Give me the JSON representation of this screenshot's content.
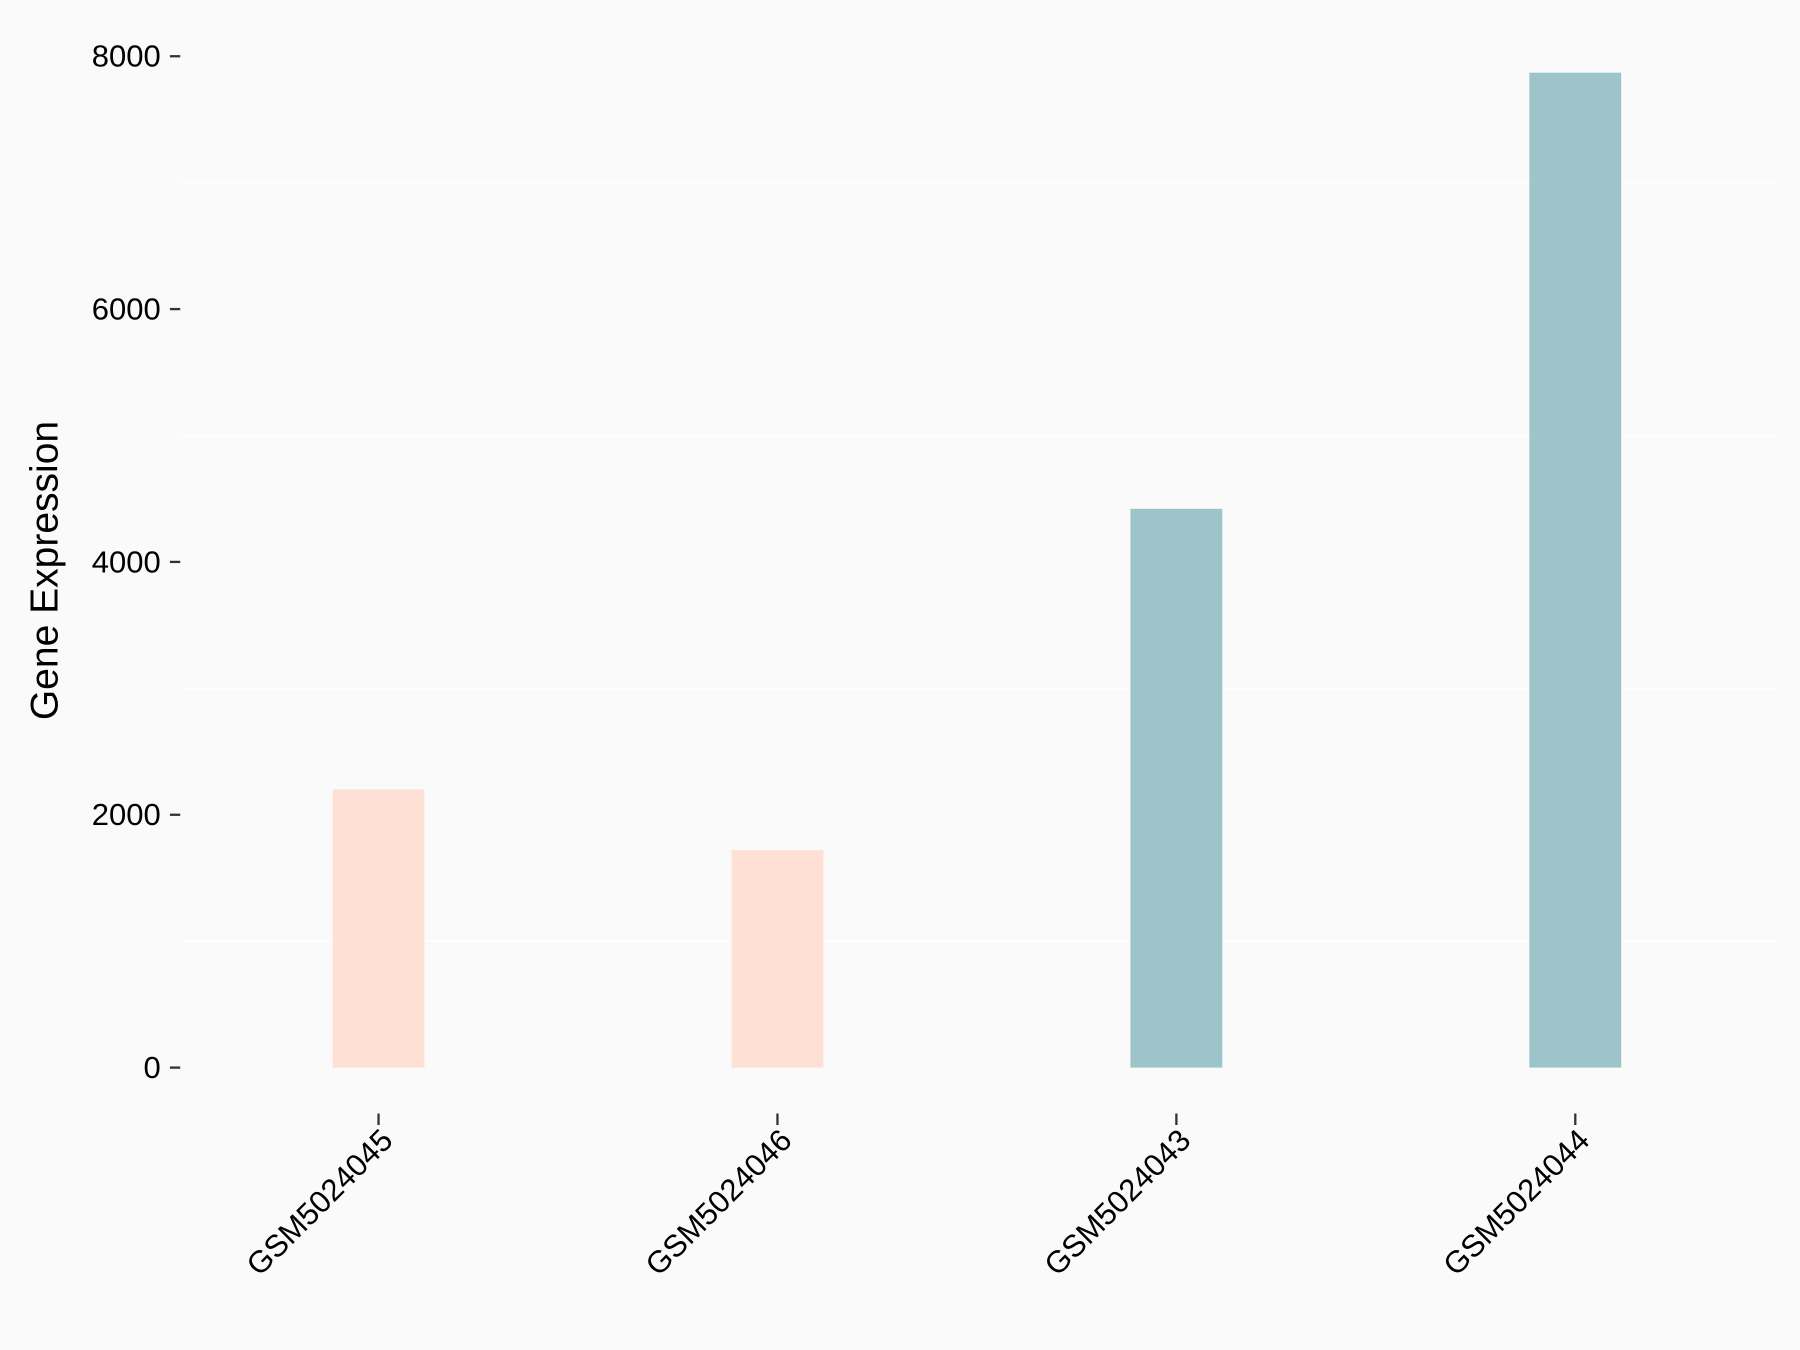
{
  "chart_data": {
    "type": "bar",
    "title": "",
    "xlabel": "",
    "ylabel": "Gene Expression",
    "categories": [
      "GSM5024045",
      "GSM5024046",
      "GSM5024043",
      "GSM5024044"
    ],
    "values": [
      2200,
      1720,
      4420,
      7870
    ],
    "bar_colors": [
      "#ffe0d5",
      "#ffe0d5",
      "#9dc4c8",
      "#9dc4c8"
    ],
    "ylim": [
      0,
      8000
    ],
    "yticks": [
      0,
      2000,
      4000,
      6000,
      8000
    ],
    "ytick_labels": [
      "0",
      "2000",
      "4000",
      "6000",
      "8000"
    ],
    "grid": "horizontal minor lines",
    "background": "#fafafa",
    "legend": "none"
  }
}
